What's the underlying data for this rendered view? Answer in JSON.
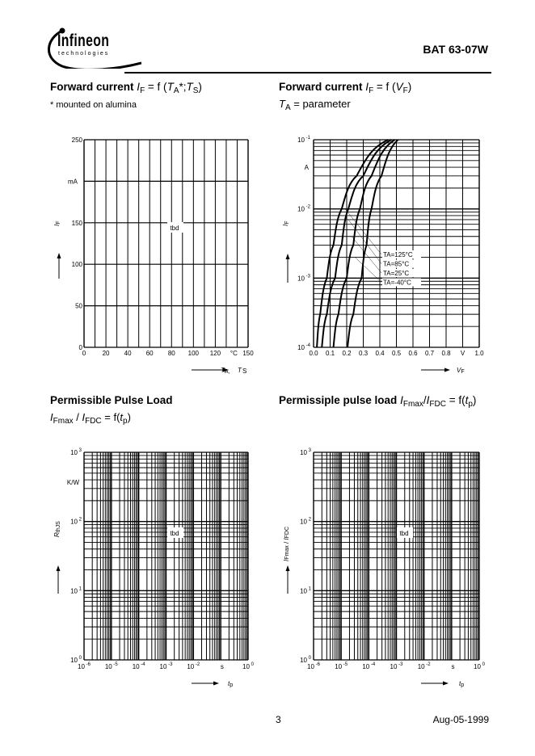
{
  "header": {
    "logo_text": "Infineon",
    "logo_subtext": "technologies",
    "part_number": "BAT 63-07W"
  },
  "sections": {
    "s1": {
      "title": "Forward current",
      "sym1": "I",
      "sub1": "F",
      "eq": " = f (",
      "sym2": "T",
      "sub2": "A",
      "mid": "*;",
      "sym3": "T",
      "sub3": "S",
      "end": ")",
      "note": "* mounted on alumina"
    },
    "s2": {
      "title": "Forward current",
      "sym1": "I",
      "sub1": "F",
      "eq": " = f (",
      "sym2": "V",
      "sub2": "F",
      "end": ")",
      "param_sym": "T",
      "param_sub": "A",
      "param_text": " = parameter"
    },
    "s3": {
      "title": "Permissible Pulse Load",
      "sym1": "I",
      "sub1": "Fmax",
      "sep": " / ",
      "sym2": "I",
      "sub2": "FDC",
      "eq": " = f(",
      "sym3": "t",
      "sub3": "p",
      "end": ")"
    },
    "s4": {
      "title": "Permissiple pulse load",
      "sym1": "I",
      "sub1": "Fmax",
      "sep": "/",
      "sym2": "I",
      "sub2": "FDC",
      "eq": " = f(",
      "sym3": "t",
      "sub3": "p",
      "end": ")"
    }
  },
  "chart_data": [
    {
      "type": "line",
      "title": "Forward current IF = f (TA*;TS)",
      "ylabel": "IF",
      "yunit": "mA",
      "xlabel": "TA, TS",
      "xunit": "°C",
      "xlim": [
        0,
        150
      ],
      "ylim": [
        0,
        250
      ],
      "x_ticks": [
        0,
        20,
        40,
        60,
        80,
        100,
        120,
        150
      ],
      "y_ticks": [
        0,
        50,
        100,
        150,
        200,
        250
      ],
      "y_tick_labels": [
        "0",
        "50",
        "100",
        "150",
        "",
        "250"
      ],
      "grid": true,
      "scale": "linear",
      "annotation": "tbd",
      "series": []
    },
    {
      "type": "line",
      "title": "Forward current IF = f (VF)",
      "ylabel": "IF",
      "yunit": "A",
      "xlabel": "VF",
      "xunit": "V",
      "xlim": [
        0,
        1.0
      ],
      "ylim": [
        0.0001,
        0.1
      ],
      "yscale": "log",
      "x_ticks": [
        0,
        0.1,
        0.2,
        0.3,
        0.4,
        0.5,
        0.6,
        0.7,
        0.8,
        1.0
      ],
      "x_tick_labels": [
        "0.0",
        "0.1",
        "0.2",
        "0.3",
        "0.4",
        "0.5",
        "0.6",
        "0.7",
        "0.8",
        "1.0"
      ],
      "y_tick_exponents": [
        "-4",
        "-3",
        "-2",
        "-1"
      ],
      "grid": true,
      "series": [
        {
          "name": "TA=125°C",
          "x": [
            0.02,
            0.04,
            0.08,
            0.12,
            0.17,
            0.26,
            0.45
          ],
          "y": [
            0.0001,
            0.0003,
            0.001,
            0.003,
            0.01,
            0.03,
            0.1
          ]
        },
        {
          "name": "TA=85°C",
          "x": [
            0.05,
            0.08,
            0.13,
            0.17,
            0.21,
            0.3,
            0.47
          ],
          "y": [
            0.0001,
            0.0003,
            0.001,
            0.003,
            0.01,
            0.03,
            0.1
          ]
        },
        {
          "name": "TA=25°C",
          "x": [
            0.12,
            0.15,
            0.2,
            0.24,
            0.28,
            0.35,
            0.49
          ],
          "y": [
            0.0001,
            0.0003,
            0.001,
            0.003,
            0.01,
            0.03,
            0.1
          ]
        },
        {
          "name": "TA=-40°C",
          "x": [
            0.205,
            0.24,
            0.29,
            0.32,
            0.35,
            0.41,
            0.51
          ],
          "y": [
            0.0001,
            0.0003,
            0.001,
            0.003,
            0.01,
            0.03,
            0.1
          ]
        }
      ]
    },
    {
      "type": "line",
      "title": "Permissible Pulse Load",
      "ylabel": "RthJS",
      "yunit": "K/W",
      "xlabel": "tp",
      "xunit": "s",
      "xlim": [
        1e-06,
        1
      ],
      "ylim": [
        1,
        1000
      ],
      "xscale": "log",
      "yscale": "log",
      "x_tick_exponents": [
        "-6",
        "-5",
        "-4",
        "-3",
        "-2",
        "0"
      ],
      "y_tick_exponents": [
        "0",
        "1",
        "2",
        "3"
      ],
      "grid": true,
      "annotation": "tbd",
      "series": []
    },
    {
      "type": "line",
      "title": "Permissiple pulse load IFmax/IFDC = f(tp)",
      "ylabel": "IFmax / IFDC",
      "yunit": "",
      "xlabel": "tp",
      "xunit": "s",
      "xlim": [
        1e-06,
        1
      ],
      "ylim": [
        1,
        1000
      ],
      "xscale": "log",
      "yscale": "log",
      "x_tick_exponents": [
        "-6",
        "-5",
        "-4",
        "-3",
        "-2",
        "0"
      ],
      "y_tick_exponents": [
        "0",
        "1",
        "2",
        "3"
      ],
      "grid": true,
      "annotation": "tbd",
      "series": []
    }
  ],
  "footer": {
    "page": "3",
    "date": "Aug-05-1999"
  }
}
